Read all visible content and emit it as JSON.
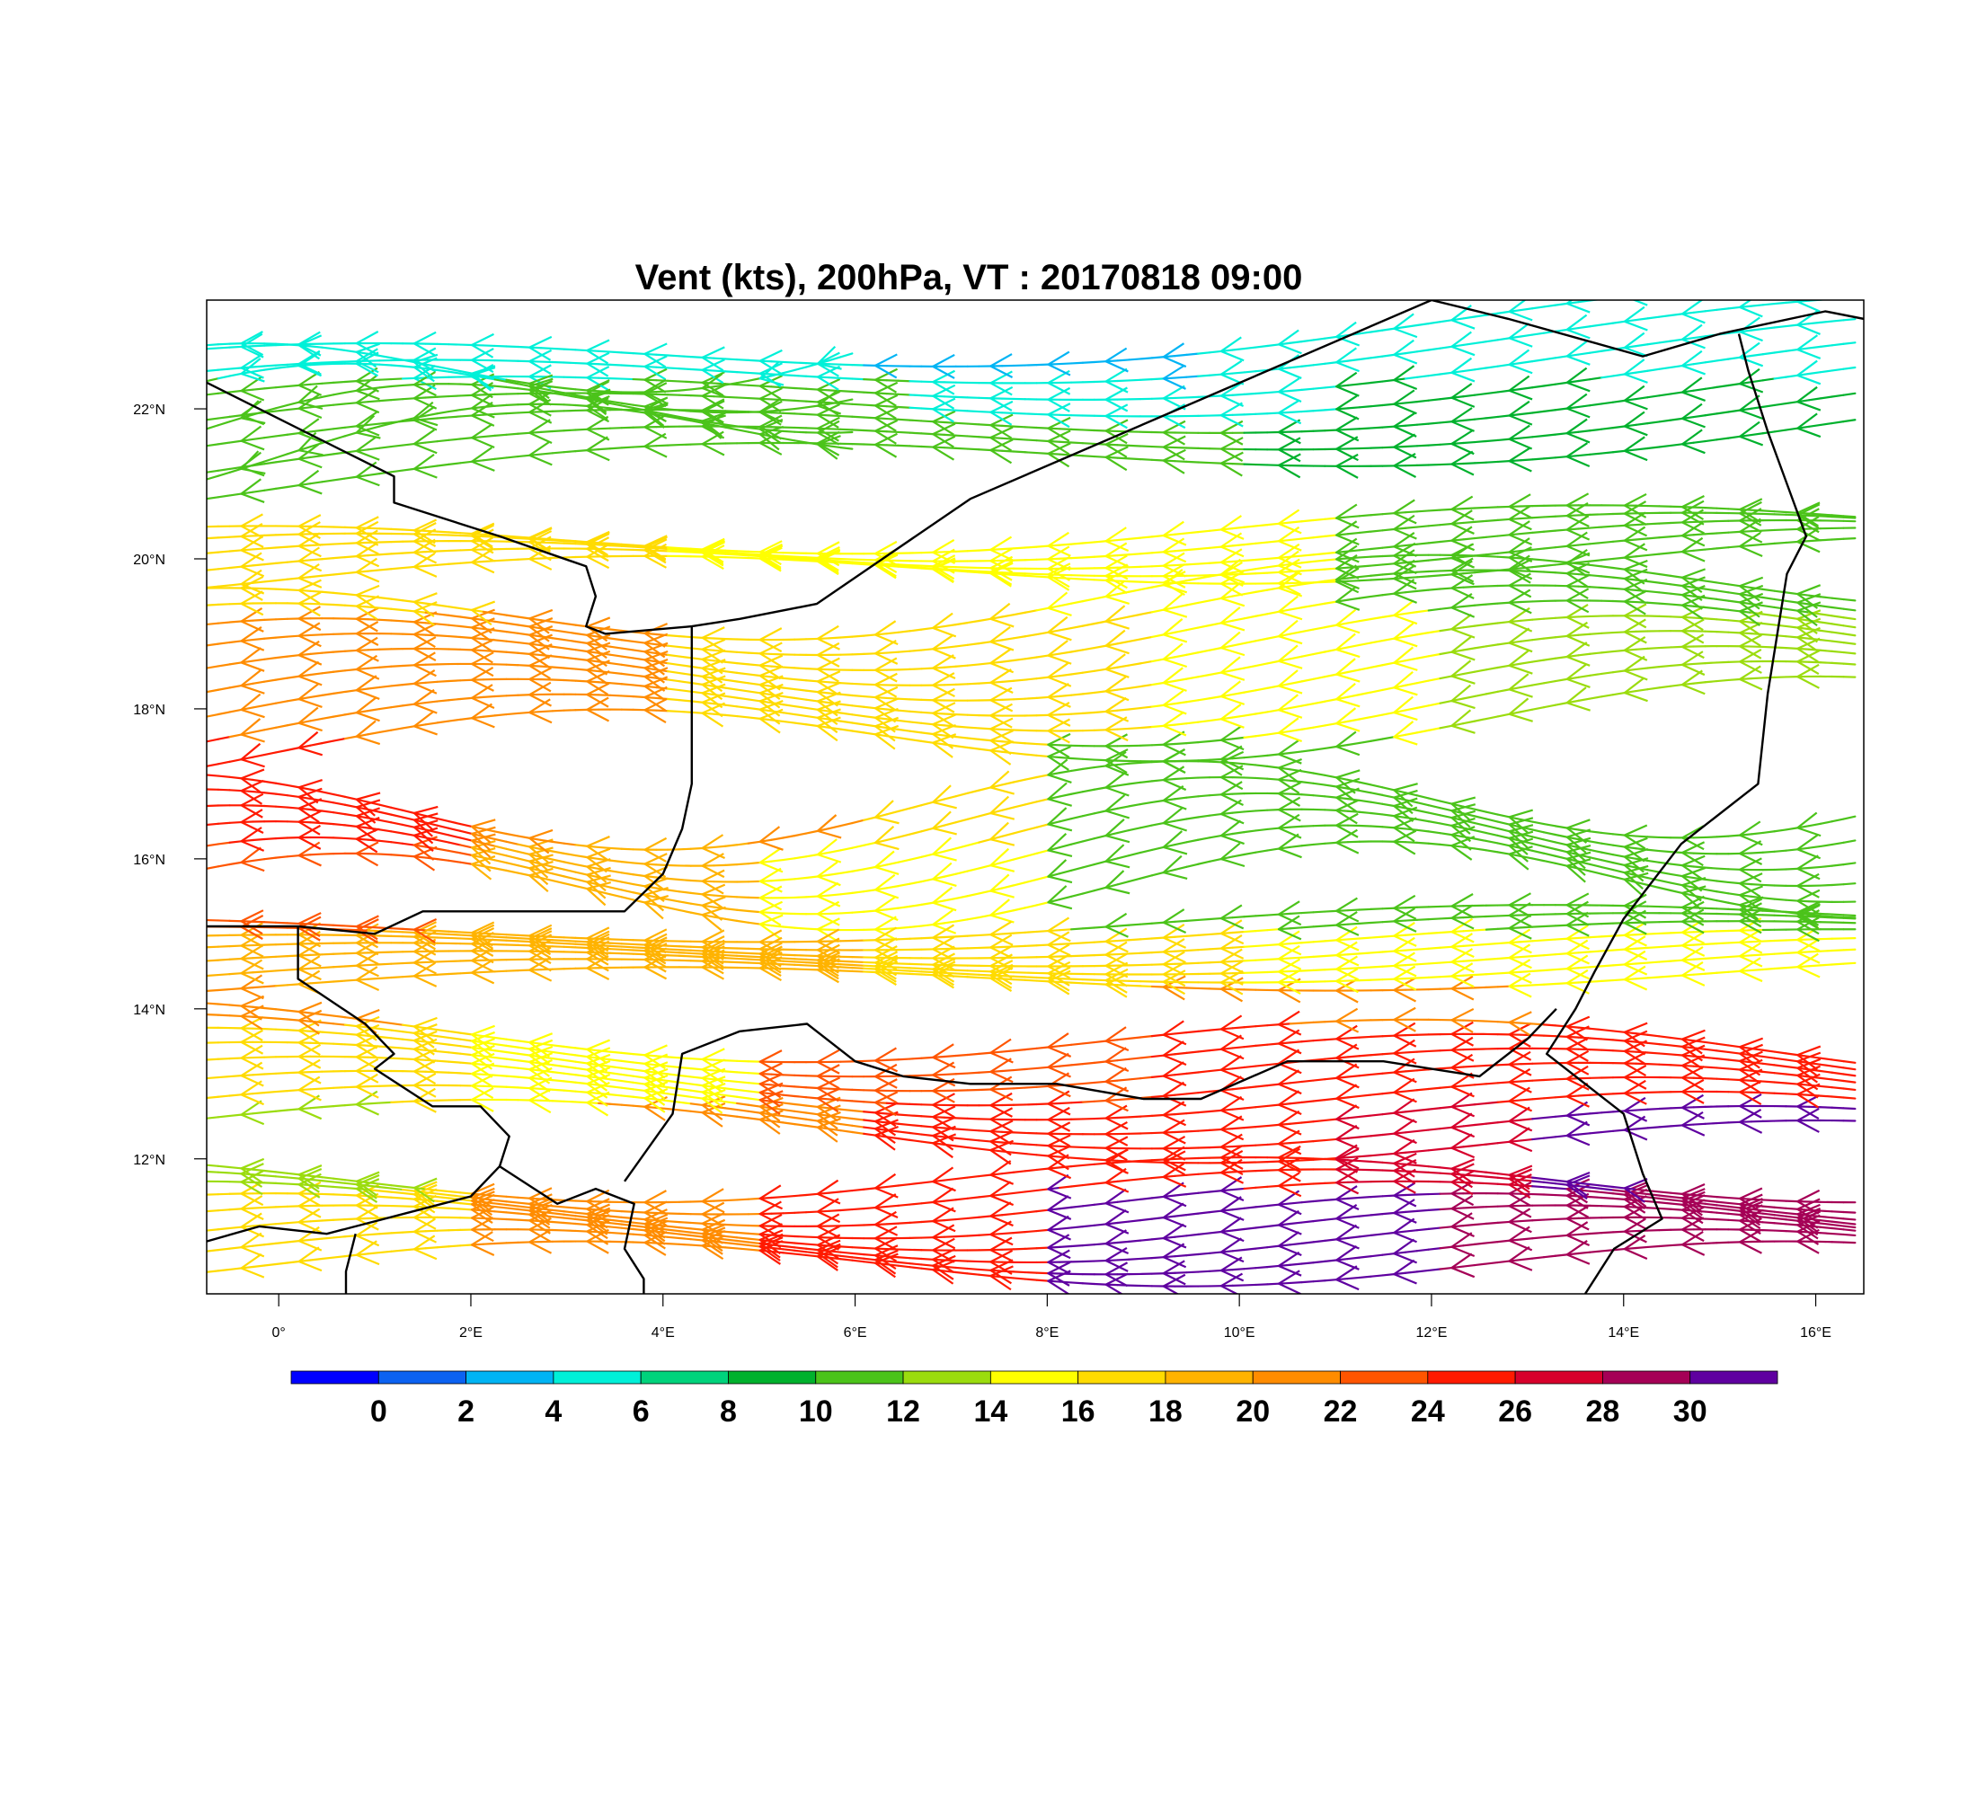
{
  "title": "Vent (kts), 200hPa, VT : 20170818  09:00",
  "map": {
    "lon_range": [
      -0.75,
      16.5
    ],
    "lat_range": [
      10.2,
      23.45
    ],
    "x_ticks": [
      {
        "value": 0,
        "label": "0°"
      },
      {
        "value": 2,
        "label": "2°E"
      },
      {
        "value": 4,
        "label": "4°E"
      },
      {
        "value": 6,
        "label": "6°E"
      },
      {
        "value": 8,
        "label": "8°E"
      },
      {
        "value": 10,
        "label": "10°E"
      },
      {
        "value": 12,
        "label": "12°E"
      },
      {
        "value": 14,
        "label": "14°E"
      },
      {
        "value": 16,
        "label": "16°E"
      }
    ],
    "y_ticks": [
      {
        "value": 12,
        "label": "12°N"
      },
      {
        "value": 14,
        "label": "14°N"
      },
      {
        "value": 16,
        "label": "16°N"
      },
      {
        "value": 18,
        "label": "18°N"
      },
      {
        "value": 20,
        "label": "20°N"
      },
      {
        "value": 22,
        "label": "22°N"
      }
    ],
    "wind_direction": "easterly",
    "borders": [
      [
        [
          -0.75,
          22.35
        ],
        [
          1.2,
          21.1
        ],
        [
          1.2,
          20.75
        ],
        [
          2.3,
          20.3
        ],
        [
          3.2,
          19.9
        ],
        [
          3.3,
          19.5
        ],
        [
          3.2,
          19.1
        ],
        [
          3.4,
          19.0
        ],
        [
          4.3,
          19.1
        ],
        [
          4.8,
          19.2
        ],
        [
          5.6,
          19.4
        ],
        [
          7.2,
          20.8
        ],
        [
          12.0,
          23.45
        ],
        [
          12.8,
          23.2
        ],
        [
          14.2,
          22.7
        ],
        [
          15.0,
          23.0
        ],
        [
          16.1,
          23.3
        ],
        [
          16.5,
          23.2
        ]
      ],
      [
        [
          15.2,
          23.0
        ],
        [
          15.3,
          22.5
        ],
        [
          15.5,
          21.7
        ],
        [
          15.7,
          21.0
        ],
        [
          15.9,
          20.3
        ],
        [
          15.7,
          19.8
        ],
        [
          15.6,
          19.0
        ],
        [
          15.5,
          18.2
        ],
        [
          15.4,
          17.0
        ],
        [
          14.6,
          16.2
        ],
        [
          14.0,
          15.2
        ],
        [
          13.7,
          14.5
        ],
        [
          13.5,
          14.0
        ],
        [
          13.2,
          13.4
        ],
        [
          13.6,
          13.0
        ],
        [
          14.0,
          12.6
        ],
        [
          14.2,
          11.8
        ],
        [
          14.4,
          11.2
        ],
        [
          13.9,
          10.8
        ],
        [
          13.6,
          10.2
        ]
      ],
      [
        [
          4.3,
          19.1
        ],
        [
          4.3,
          17.0
        ],
        [
          4.2,
          16.4
        ],
        [
          4.0,
          15.8
        ],
        [
          3.6,
          15.3
        ],
        [
          1.5,
          15.3
        ],
        [
          1.0,
          15.0
        ],
        [
          0.2,
          15.1
        ],
        [
          -0.75,
          15.1
        ]
      ],
      [
        [
          0.2,
          15.1
        ],
        [
          0.2,
          14.4
        ],
        [
          0.9,
          13.8
        ],
        [
          1.2,
          13.4
        ],
        [
          1.0,
          13.2
        ],
        [
          1.6,
          12.7
        ],
        [
          2.1,
          12.7
        ],
        [
          2.4,
          12.3
        ],
        [
          2.3,
          11.9
        ],
        [
          2.9,
          11.4
        ],
        [
          3.3,
          11.6
        ],
        [
          3.7,
          11.4
        ],
        [
          3.6,
          10.8
        ],
        [
          3.8,
          10.4
        ],
        [
          3.8,
          10.2
        ]
      ],
      [
        [
          3.6,
          11.7
        ],
        [
          4.1,
          12.6
        ],
        [
          4.2,
          13.4
        ],
        [
          4.8,
          13.7
        ],
        [
          5.5,
          13.8
        ],
        [
          6.0,
          13.3
        ],
        [
          6.5,
          13.1
        ],
        [
          7.2,
          13.0
        ],
        [
          8.1,
          13.0
        ],
        [
          9.0,
          12.8
        ],
        [
          9.6,
          12.8
        ],
        [
          10.5,
          13.3
        ],
        [
          11.5,
          13.3
        ],
        [
          12.5,
          13.1
        ],
        [
          13.0,
          13.6
        ],
        [
          13.3,
          14.0
        ]
      ],
      [
        [
          -0.75,
          10.9
        ],
        [
          -0.2,
          11.1
        ],
        [
          0.5,
          11.0
        ],
        [
          1.4,
          11.3
        ],
        [
          2.0,
          11.5
        ],
        [
          2.3,
          11.9
        ]
      ],
      [
        [
          0.8,
          11.0
        ],
        [
          0.7,
          10.5
        ],
        [
          0.7,
          10.2
        ]
      ]
    ]
  },
  "colorbar": {
    "colors": [
      "#0000ff",
      "#0b62f1",
      "#00b4f4",
      "#00f0d8",
      "#00d37c",
      "#00b12d",
      "#4bc31a",
      "#9bdc0e",
      "#ffff00",
      "#ffdb00",
      "#ffb300",
      "#ff8c00",
      "#ff5500",
      "#ff1a00",
      "#d7002c",
      "#a50056",
      "#5f00a0"
    ],
    "labels": [
      "0",
      "2",
      "4",
      "6",
      "8",
      "10",
      "12",
      "14",
      "16",
      "18",
      "20",
      "22",
      "24",
      "26",
      "28",
      "30"
    ]
  }
}
